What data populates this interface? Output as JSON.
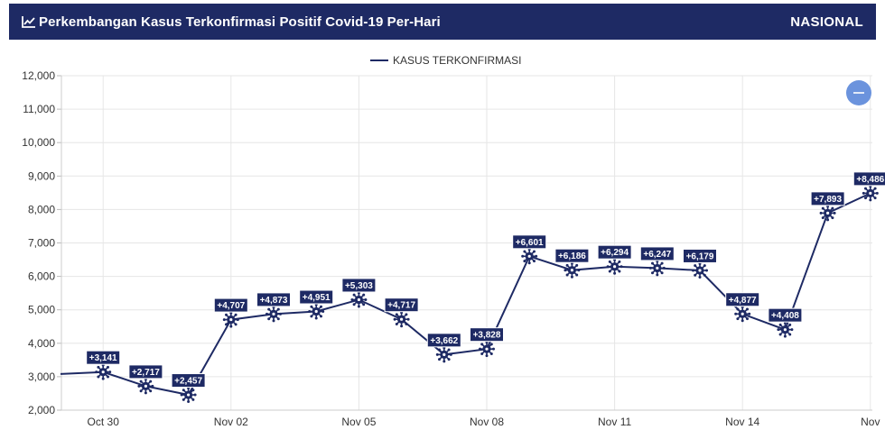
{
  "header": {
    "title": "Perkembangan Kasus Terkonfirmasi Positif Covid-19 Per-Hari",
    "region": "NASIONAL",
    "icon": "line-chart-icon"
  },
  "zoom_button": {
    "icon": "minus-icon"
  },
  "colors": {
    "navy": "#1e2a64",
    "zoom": "#6b93dd",
    "grid": "#e6e6e6"
  },
  "chart_data": {
    "type": "line",
    "legend": "KASUS TERKONFIRMASI",
    "legend_position": "top-center",
    "grid": true,
    "ylim": [
      2000,
      12000
    ],
    "yticks": [
      "2,000",
      "3,000",
      "4,000",
      "5,000",
      "6,000",
      "7,000",
      "8,000",
      "9,000",
      "10,000",
      "11,000",
      "12,000"
    ],
    "xticks": [
      {
        "index": 1,
        "label": "Oct 30"
      },
      {
        "index": 4,
        "label": "Nov 02"
      },
      {
        "index": 7,
        "label": "Nov 05"
      },
      {
        "index": 10,
        "label": "Nov 08"
      },
      {
        "index": 13,
        "label": "Nov 11"
      },
      {
        "index": 16,
        "label": "Nov 14"
      },
      {
        "index": 19,
        "label": "Nov"
      }
    ],
    "series": [
      {
        "name": "KASUS TERKONFIRMASI",
        "points": [
          {
            "date": "Oct 29",
            "value": 3080
          },
          {
            "date": "Oct 30",
            "value": 3141,
            "label": "+3,141"
          },
          {
            "date": "Oct 31",
            "value": 2717,
            "label": "+2,717"
          },
          {
            "date": "Nov 01",
            "value": 2457,
            "label": "+2,457"
          },
          {
            "date": "Nov 02",
            "value": 4707,
            "label": "+4,707"
          },
          {
            "date": "Nov 03",
            "value": 4873,
            "label": "+4,873"
          },
          {
            "date": "Nov 04",
            "value": 4951,
            "label": "+4,951"
          },
          {
            "date": "Nov 05",
            "value": 5303,
            "label": "+5,303"
          },
          {
            "date": "Nov 06",
            "value": 4717,
            "label": "+4,717"
          },
          {
            "date": "Nov 07",
            "value": 3662,
            "label": "+3,662"
          },
          {
            "date": "Nov 08",
            "value": 3828,
            "label": "+3,828"
          },
          {
            "date": "Nov 09",
            "value": 6601,
            "label": "+6,601"
          },
          {
            "date": "Nov 10",
            "value": 6186,
            "label": "+6,186"
          },
          {
            "date": "Nov 11",
            "value": 6294,
            "label": "+6,294"
          },
          {
            "date": "Nov 12",
            "value": 6247,
            "label": "+6,247"
          },
          {
            "date": "Nov 13",
            "value": 6179,
            "label": "+6,179"
          },
          {
            "date": "Nov 14",
            "value": 4877,
            "label": "+4,877"
          },
          {
            "date": "Nov 15",
            "value": 4408,
            "label": "+4,408"
          },
          {
            "date": "Nov 16",
            "value": 7893,
            "label": "+7,893"
          },
          {
            "date": "Nov 17",
            "value": 8486,
            "label": "+8,486"
          }
        ]
      }
    ]
  }
}
